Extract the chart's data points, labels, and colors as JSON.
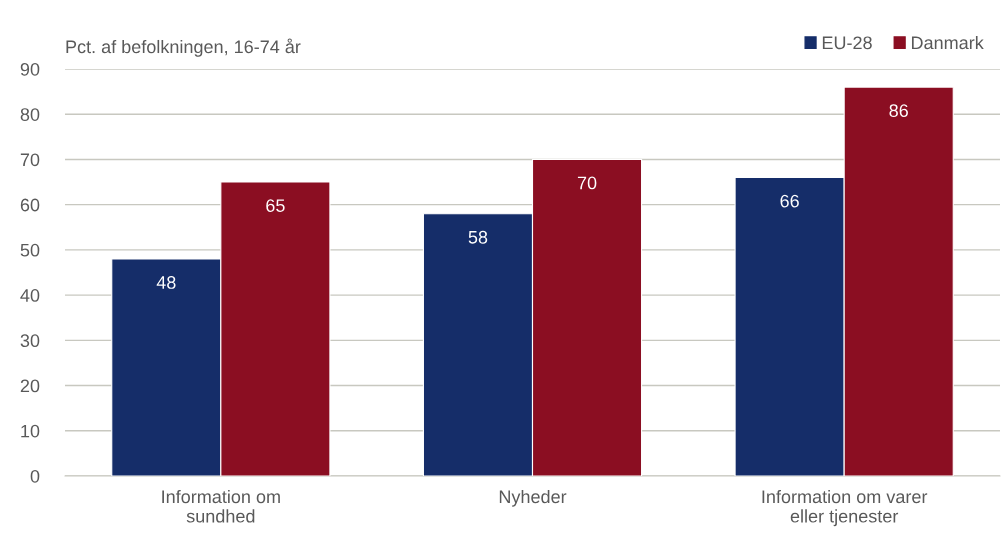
{
  "chart_data": {
    "type": "bar",
    "ylabel": "Pct. af befolkningen, 16-74 år",
    "categories": [
      "Information om\nsundhed",
      "Nyheder",
      "Information om varer\neller tjenester"
    ],
    "series": [
      {
        "name": "EU-28",
        "color": "#152d69",
        "values": [
          48,
          58,
          66
        ]
      },
      {
        "name": "Danmark",
        "color": "#8b0e22",
        "values": [
          65,
          70,
          86
        ]
      }
    ],
    "ylim": [
      0,
      90
    ],
    "yticks": [
      0,
      10,
      20,
      30,
      40,
      50,
      60,
      70,
      80,
      90
    ],
    "grid": "y",
    "legend": "top right",
    "data_labels": true
  }
}
